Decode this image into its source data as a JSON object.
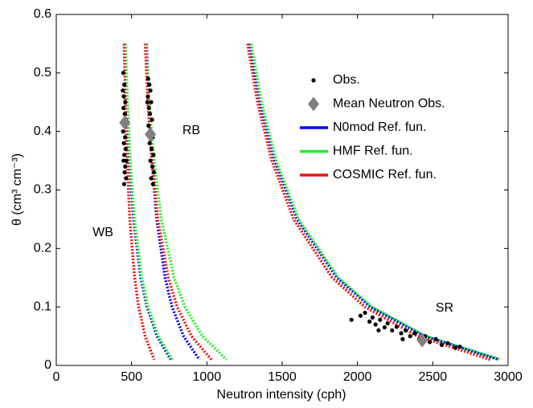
{
  "chart_data": {
    "type": "line",
    "xlabel": "Neutron intensity (cph)",
    "ylabel": "θ (cm³ cm⁻³)",
    "xlim": [
      0,
      3000
    ],
    "xticks": [
      0,
      500,
      1000,
      1500,
      2000,
      2500,
      3000
    ],
    "ylim": [
      0,
      0.6
    ],
    "yticks": [
      0,
      0.1,
      0.2,
      0.3,
      0.4,
      0.5,
      0.6
    ],
    "legend": "upper right",
    "annotations": [
      "WB",
      "RB",
      "SR"
    ],
    "series": [
      {
        "name": "Obs.",
        "type": "scatter",
        "marker": "dot",
        "color": "#000000",
        "x": [
          445,
          452,
          448,
          458,
          446,
          455,
          462,
          450,
          444,
          457,
          449,
          460,
          452,
          447,
          458,
          454,
          463,
          451,
          442,
          466,
          610,
          618,
          625,
          608,
          630,
          615,
          622,
          636,
          612,
          628,
          640,
          620,
          633,
          645,
          625,
          638,
          648,
          630,
          642,
          605,
          1960,
          2020,
          2050,
          2080,
          2100,
          2120,
          2150,
          2180,
          2200,
          2230,
          2260,
          2290,
          2320,
          2350,
          2380,
          2410,
          2450,
          2480,
          2520,
          2560,
          2600,
          2650,
          2680,
          2140,
          2300
        ],
        "values": [
          0.5,
          0.48,
          0.46,
          0.45,
          0.44,
          0.43,
          0.42,
          0.41,
          0.4,
          0.39,
          0.38,
          0.37,
          0.36,
          0.35,
          0.34,
          0.33,
          0.32,
          0.31,
          0.47,
          0.35,
          0.49,
          0.48,
          0.47,
          0.46,
          0.45,
          0.44,
          0.43,
          0.42,
          0.41,
          0.4,
          0.39,
          0.38,
          0.37,
          0.36,
          0.35,
          0.34,
          0.33,
          0.32,
          0.31,
          0.45,
          0.078,
          0.085,
          0.09,
          0.075,
          0.082,
          0.07,
          0.078,
          0.065,
          0.072,
          0.06,
          0.066,
          0.055,
          0.06,
          0.05,
          0.055,
          0.045,
          0.05,
          0.04,
          0.045,
          0.035,
          0.038,
          0.03,
          0.032,
          0.06,
          0.045
        ]
      },
      {
        "name": "Mean Neutron Obs.",
        "type": "scatter",
        "marker": "diamond",
        "color": "#808080",
        "x": [
          455,
          625,
          2430
        ],
        "values": [
          0.415,
          0.395,
          0.043
        ]
      },
      {
        "name": "N0mod Ref. fun.",
        "type": "line",
        "line_style": "dotted",
        "color": "#0000ff",
        "x": [
          455,
          468,
          486,
          513,
          561,
          603,
          669,
          760,
          null,
          600,
          614,
          635,
          667,
          722,
          769,
          845,
          950,
          null,
          1285,
          1353,
          1451,
          1599,
          1863,
          2086,
          2445,
          2940
        ],
        "values": [
          0.55,
          0.45,
          0.35,
          0.25,
          0.15,
          0.1,
          0.05,
          0.01,
          null,
          0.55,
          0.45,
          0.35,
          0.25,
          0.15,
          0.1,
          0.05,
          0.01,
          null,
          0.55,
          0.45,
          0.35,
          0.25,
          0.15,
          0.1,
          0.05,
          0.01
        ]
      },
      {
        "name": "HMF Ref. fun.",
        "type": "line",
        "line_style": "dotted",
        "color": "#22ee22",
        "x": [
          460,
          473,
          491,
          519,
          568,
          610,
          677,
          770,
          null,
          595,
          617,
          649,
          697,
          782,
          854,
          970,
          1130,
          null,
          1295,
          1363,
          1461,
          1609,
          1873,
          2096,
          2455,
          2950
        ],
        "values": [
          0.55,
          0.45,
          0.35,
          0.25,
          0.15,
          0.1,
          0.05,
          0.01,
          null,
          0.55,
          0.45,
          0.35,
          0.25,
          0.15,
          0.1,
          0.05,
          0.01,
          null,
          0.55,
          0.45,
          0.35,
          0.25,
          0.15,
          0.1,
          0.05,
          0.01
        ]
      },
      {
        "name": "COSMIC Ref. fun.",
        "type": "line",
        "line_style": "dotted",
        "color": "#ee1111",
        "x": [
          450,
          458,
          470,
          488,
          520,
          547,
          590,
          650,
          null,
          590,
          608,
          634,
          674,
          744,
          803,
          898,
          1030,
          null,
          1270,
          1336,
          1431,
          1576,
          1832,
          2049,
          2399,
          2880
        ],
        "values": [
          0.55,
          0.45,
          0.35,
          0.25,
          0.15,
          0.1,
          0.05,
          0.01,
          null,
          0.55,
          0.45,
          0.35,
          0.25,
          0.15,
          0.1,
          0.05,
          0.01,
          null,
          0.55,
          0.45,
          0.35,
          0.25,
          0.15,
          0.1,
          0.05,
          0.01
        ]
      }
    ]
  }
}
